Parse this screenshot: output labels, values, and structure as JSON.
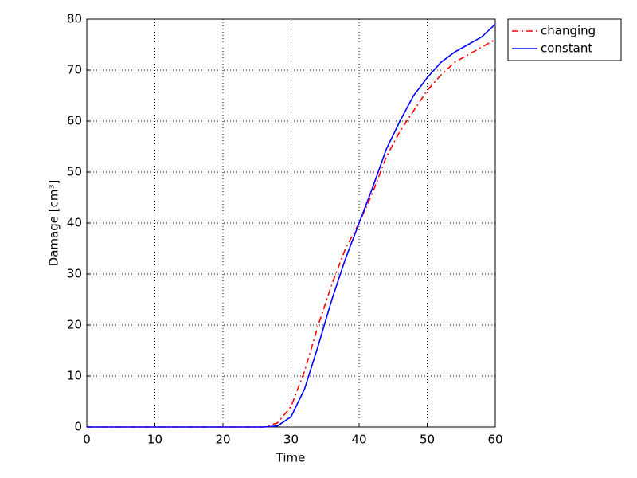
{
  "chart_data": {
    "type": "line",
    "xlabel": "Time",
    "ylabel": "Damage [cm³]",
    "x": [
      0,
      2,
      4,
      6,
      8,
      10,
      12,
      14,
      16,
      18,
      20,
      22,
      24,
      26,
      28,
      30,
      32,
      34,
      36,
      38,
      40,
      42,
      44,
      46,
      48,
      50,
      52,
      54,
      56,
      58,
      60
    ],
    "series": [
      {
        "name": "changing",
        "color": "#ff0000",
        "linestyle": "dashdot",
        "values": [
          0,
          0,
          0,
          0,
          0,
          0,
          0,
          0,
          0,
          0,
          0,
          0,
          0,
          0,
          0.8,
          4,
          11,
          20,
          28,
          35,
          40,
          46,
          53,
          58,
          62,
          66,
          69,
          71.5,
          73,
          74.5,
          76
        ]
      },
      {
        "name": "constant",
        "color": "#0000ff",
        "linestyle": "solid",
        "values": [
          0,
          0,
          0,
          0,
          0,
          0,
          0,
          0,
          0,
          0,
          0,
          0,
          0,
          0,
          0.2,
          2,
          7.5,
          16,
          25,
          33,
          40,
          47,
          54.5,
          60,
          65,
          68.5,
          71.5,
          73.5,
          75,
          76.5,
          79
        ]
      }
    ],
    "xlim": [
      0,
      60
    ],
    "xticks": [
      0,
      10,
      20,
      30,
      40,
      50,
      60
    ],
    "ylim": [
      0,
      80
    ],
    "yticks": [
      0,
      10,
      20,
      30,
      40,
      50,
      60,
      70,
      80
    ],
    "grid": true,
    "legend": "outside-top-right"
  }
}
